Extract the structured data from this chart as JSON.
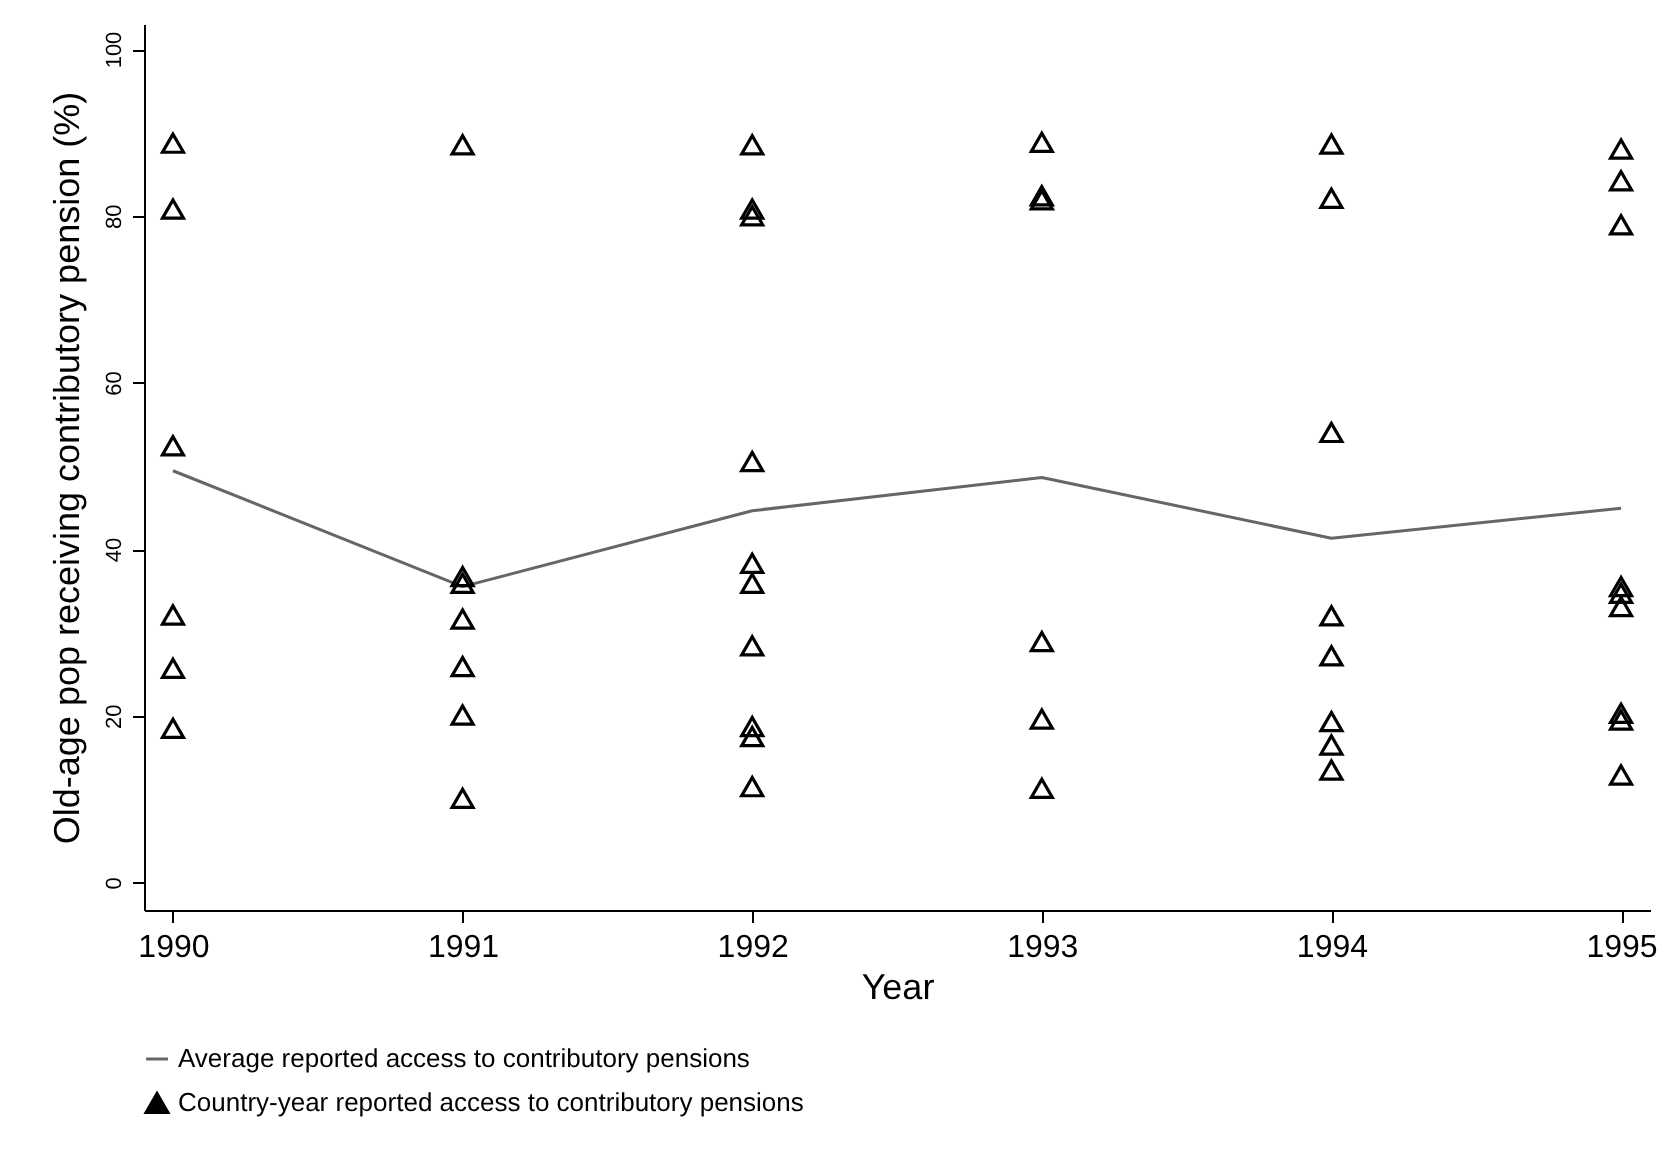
{
  "chart_data": {
    "type": "scatter",
    "xlabel": "Year",
    "ylabel": "Old-age pop receiving contributory pension (%)",
    "xlim": [
      1989.9,
      1995.1
    ],
    "ylim": [
      -3.3,
      103
    ],
    "xticks": [
      1990,
      1991,
      1992,
      1993,
      1994,
      1995
    ],
    "yticks": [
      0,
      20,
      40,
      60,
      80,
      100
    ],
    "grid": false,
    "legend": "bottom",
    "series": [
      {
        "name": "Average reported access to contributory pensions",
        "type": "line",
        "marker": "none",
        "color": "#666666",
        "x": [
          1990,
          1991,
          1992,
          1993,
          1994,
          1995
        ],
        "values": [
          49.4,
          35.5,
          44.6,
          48.6,
          41.3,
          44.9
        ]
      },
      {
        "name": "Country-year reported access to contributory pensions",
        "marker": "triangle",
        "color": "#000000",
        "x": [
          1990,
          1990,
          1990,
          1990,
          1990,
          1990,
          1991,
          1991,
          1991,
          1991,
          1991,
          1991,
          1991,
          1992,
          1992,
          1992,
          1992,
          1992,
          1992,
          1992,
          1992,
          1992,
          1992,
          1993,
          1993,
          1993,
          1993,
          1993,
          1993,
          1994,
          1994,
          1994,
          1994,
          1994,
          1994,
          1994,
          1994,
          1995,
          1995,
          1995,
          1995,
          1995,
          1995,
          1995,
          1995,
          1995
        ],
        "values": [
          88.7,
          80.8,
          52.4,
          32.1,
          25.7,
          18.5,
          88.5,
          36.7,
          35.9,
          31.6,
          25.9,
          20.1,
          10.1,
          88.5,
          80.8,
          80.0,
          50.5,
          38.3,
          35.9,
          28.4,
          18.7,
          17.5,
          11.5,
          88.8,
          82.4,
          81.9,
          28.9,
          19.6,
          11.3,
          88.6,
          82.1,
          54.0,
          32.0,
          27.2,
          19.3,
          16.5,
          13.5,
          88.0,
          84.2,
          78.9,
          35.5,
          34.7,
          33.1,
          20.3,
          19.5,
          12.9
        ]
      }
    ]
  }
}
